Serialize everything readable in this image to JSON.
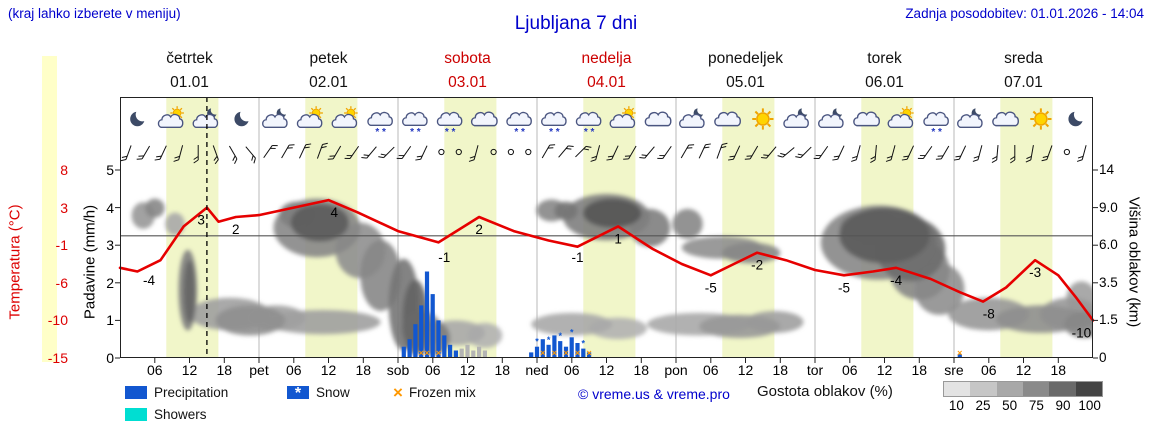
{
  "colors": {
    "blue_text": "#0000cc",
    "temperature": "#e60000",
    "temperature_axis": "#dd0000",
    "daylight": "#f1f6c9",
    "strip": "#ffffc8",
    "precipitation": "#1257d0",
    "showers": "#00ded2",
    "frozen": "#ff9800",
    "weekend_red": "#cc0000"
  },
  "header": {
    "hint": "(kraj lahko izberete v meniju)",
    "title": "Ljubljana 7 dni",
    "last_update": "Zadnja posodobitev: 01.01.2026 - 14:04"
  },
  "days": [
    {
      "name": "četrtek",
      "date": "01.01",
      "highlight": false
    },
    {
      "name": "petek",
      "date": "02.01",
      "highlight": false
    },
    {
      "name": "sobota",
      "date": "03.01",
      "highlight": true
    },
    {
      "name": "nedelja",
      "date": "04.01",
      "highlight": true
    },
    {
      "name": "ponedeljek",
      "date": "05.01",
      "highlight": false
    },
    {
      "name": "torek",
      "date": "06.01",
      "highlight": false
    },
    {
      "name": "sreda",
      "date": "07.01",
      "highlight": false
    }
  ],
  "left_axis": {
    "temp_label": "Temperatura (°C)",
    "temp_ticks": [
      "8",
      "3",
      "-1",
      "-6",
      "-10",
      "-15"
    ],
    "precip_label": "Padavine (mm/h)",
    "precip_ticks": [
      "5",
      "4",
      "3",
      "2",
      "1",
      "0"
    ]
  },
  "right_axis": {
    "label": "Višina oblakov (km)",
    "ticks": [
      "14",
      "9.0",
      "6.0",
      "3.5",
      "1.5",
      "0"
    ]
  },
  "x_axis": {
    "labels": [
      "06",
      "12",
      "18",
      "pet",
      "06",
      "12",
      "18",
      "sob",
      "06",
      "12",
      "18",
      "ned",
      "06",
      "12",
      "18",
      "pon",
      "06",
      "12",
      "18",
      "tor",
      "06",
      "12",
      "18",
      "sre",
      "06",
      "12",
      "18"
    ]
  },
  "legend": {
    "precipitation": "Precipitation",
    "showers": "Showers",
    "snow": "Snow",
    "frozen_mix": "Frozen mix",
    "copyright": "© vreme.us & vreme.pro",
    "cloud_density_label": "Gostota oblakov (%)",
    "cloud_scale_labels": [
      "10",
      "25",
      "50",
      "75",
      "90",
      "100"
    ],
    "cloud_scale_colors": [
      "#e3e3e3",
      "#c6c6c6",
      "#a8a8a8",
      "#8a8a8a",
      "#6a6a6a",
      "#444444"
    ]
  },
  "chart_data": {
    "type": "meteogram",
    "hours_total": 168,
    "now_hour": 15,
    "daylight_hours": [
      8,
      17
    ],
    "temp_axis_anchors": [
      8,
      3,
      -1,
      -6,
      -10,
      -15
    ],
    "km_axis_anchors": [
      14,
      9.0,
      6.0,
      3.5,
      1.5,
      0
    ],
    "temperature_curve": [
      [
        0,
        -4
      ],
      [
        3,
        -4.5
      ],
      [
        7,
        -3
      ],
      [
        11,
        1
      ],
      [
        15,
        3
      ],
      [
        17,
        1.5
      ],
      [
        20,
        2
      ],
      [
        24,
        2.2
      ],
      [
        30,
        3
      ],
      [
        36,
        4
      ],
      [
        41,
        2.5
      ],
      [
        48,
        0.5
      ],
      [
        55,
        -0.7
      ],
      [
        62,
        2
      ],
      [
        68,
        0.5
      ],
      [
        74,
        -0.5
      ],
      [
        79,
        -1.2
      ],
      [
        86,
        1
      ],
      [
        92,
        -1.5
      ],
      [
        97,
        -3.5
      ],
      [
        102,
        -5
      ],
      [
        106,
        -3.5
      ],
      [
        110,
        -2
      ],
      [
        115,
        -3
      ],
      [
        120,
        -4.3
      ],
      [
        125,
        -5
      ],
      [
        130,
        -4.5
      ],
      [
        134,
        -4
      ],
      [
        140,
        -5.5
      ],
      [
        145,
        -7
      ],
      [
        149,
        -8
      ],
      [
        153,
        -6.5
      ],
      [
        158,
        -3
      ],
      [
        162,
        -5
      ],
      [
        165,
        -7.5
      ],
      [
        168,
        -10
      ]
    ],
    "temperature_labels": [
      {
        "h": 5,
        "v": "-4"
      },
      {
        "h": 14,
        "v": "3"
      },
      {
        "h": 20,
        "v": "2"
      },
      {
        "h": 37,
        "v": "4"
      },
      {
        "h": 56,
        "v": "-1"
      },
      {
        "h": 62,
        "v": "2"
      },
      {
        "h": 79,
        "v": "-1"
      },
      {
        "h": 86,
        "v": "1"
      },
      {
        "h": 102,
        "v": "-5"
      },
      {
        "h": 110,
        "v": "-2"
      },
      {
        "h": 125,
        "v": "-5"
      },
      {
        "h": 134,
        "v": "-4"
      },
      {
        "h": 150,
        "v": "-8"
      },
      {
        "h": 158,
        "v": "-3"
      },
      {
        "h": 166,
        "v": "-10"
      }
    ],
    "precipitation_bars": [
      {
        "h": 49,
        "mm": 0.3
      },
      {
        "h": 50,
        "mm": 0.5
      },
      {
        "h": 51,
        "mm": 0.9
      },
      {
        "h": 52,
        "mm": 1.4
      },
      {
        "h": 53,
        "mm": 2.3
      },
      {
        "h": 54,
        "mm": 1.7
      },
      {
        "h": 55,
        "mm": 1.0
      },
      {
        "h": 56,
        "mm": 0.6
      },
      {
        "h": 57,
        "mm": 0.35
      },
      {
        "h": 58,
        "mm": 0.2
      },
      {
        "h": 71,
        "mm": 0.15
      },
      {
        "h": 72,
        "mm": 0.3
      },
      {
        "h": 73,
        "mm": 0.5
      },
      {
        "h": 74,
        "mm": 0.35
      },
      {
        "h": 75,
        "mm": 0.6
      },
      {
        "h": 76,
        "mm": 0.45
      },
      {
        "h": 77,
        "mm": 0.3
      },
      {
        "h": 78,
        "mm": 0.55
      },
      {
        "h": 79,
        "mm": 0.4
      },
      {
        "h": 80,
        "mm": 0.25
      },
      {
        "h": 81,
        "mm": 0.15
      },
      {
        "h": 145,
        "mm": 0.1
      }
    ],
    "gray_bars": [
      {
        "h": 59,
        "mm": 0.25
      },
      {
        "h": 60,
        "mm": 0.35
      },
      {
        "h": 61,
        "mm": 0.2
      },
      {
        "h": 62,
        "mm": 0.3
      },
      {
        "h": 63,
        "mm": 0.2
      }
    ],
    "frozen_mix_hours": [
      52,
      53,
      55,
      73,
      75,
      77,
      79,
      81,
      145
    ],
    "snow_mark_hours": [
      72,
      74,
      76,
      78,
      80
    ],
    "clouds": [
      {
        "h": 4,
        "km": 8.5,
        "rh": 2,
        "rkm": 1.2,
        "d": 0.45
      },
      {
        "h": 6,
        "km": 9.2,
        "rh": 1.7,
        "rkm": 1.0,
        "d": 0.55
      },
      {
        "h": 9.5,
        "km": 7.7,
        "rh": 1.7,
        "rkm": 0.9,
        "d": 0.35
      },
      {
        "h": 11.7,
        "km": 3.4,
        "rh": 1.6,
        "rkm": 2.3,
        "d": 0.6
      },
      {
        "h": 12,
        "km": 3.2,
        "rh": 1.0,
        "rkm": 1.8,
        "d": 0.75
      },
      {
        "h": 19,
        "km": 1.9,
        "rh": 7,
        "rkm": 0.8,
        "d": 0.4
      },
      {
        "h": 22.5,
        "km": 1.6,
        "rh": 6,
        "rkm": 0.7,
        "d": 0.5
      },
      {
        "h": 27,
        "km": 1.7,
        "rh": 5,
        "rkm": 0.6,
        "d": 0.4
      },
      {
        "h": 34,
        "km": 7.7,
        "rh": 7.5,
        "rkm": 2.5,
        "d": 0.55
      },
      {
        "h": 34.5,
        "km": 7.9,
        "rh": 5,
        "rkm": 1.6,
        "d": 0.8
      },
      {
        "h": 30.5,
        "km": 8.6,
        "rh": 3,
        "rkm": 1.2,
        "d": 0.6
      },
      {
        "h": 41.5,
        "km": 5.8,
        "rh": 4.3,
        "rkm": 2.0,
        "d": 0.5
      },
      {
        "h": 45,
        "km": 4.2,
        "rh": 3.5,
        "rkm": 2.2,
        "d": 0.55
      },
      {
        "h": 49,
        "km": 2.7,
        "rh": 2.6,
        "rkm": 2.4,
        "d": 0.65
      },
      {
        "h": 51,
        "km": 1.9,
        "rh": 2.2,
        "rkm": 1.8,
        "d": 0.75
      },
      {
        "h": 35,
        "km": 1.5,
        "rh": 10,
        "rkm": 0.55,
        "d": 0.4
      },
      {
        "h": 52,
        "km": 1.2,
        "rh": 3.5,
        "rkm": 0.8,
        "d": 0.5
      },
      {
        "h": 54,
        "km": 0.8,
        "rh": 3,
        "rkm": 0.7,
        "d": 0.6
      },
      {
        "h": 58,
        "km": 1.0,
        "rh": 5,
        "rkm": 0.5,
        "d": 0.35
      },
      {
        "h": 63,
        "km": 0.9,
        "rh": 3,
        "rkm": 0.5,
        "d": 0.3
      },
      {
        "h": 74.5,
        "km": 9.0,
        "rh": 2.6,
        "rkm": 1.1,
        "d": 0.55
      },
      {
        "h": 77,
        "km": 8.9,
        "rh": 2,
        "rkm": 0.9,
        "d": 0.65
      },
      {
        "h": 84,
        "km": 8.6,
        "rh": 7.5,
        "rkm": 2.2,
        "d": 0.6
      },
      {
        "h": 85,
        "km": 8.8,
        "rh": 5,
        "rkm": 1.4,
        "d": 0.85
      },
      {
        "h": 91.5,
        "km": 7.4,
        "rh": 3.5,
        "rkm": 1.5,
        "d": 0.6
      },
      {
        "h": 98,
        "km": 7.7,
        "rh": 2.6,
        "rkm": 1.2,
        "d": 0.55
      },
      {
        "h": 78,
        "km": 1.4,
        "rh": 7,
        "rkm": 0.5,
        "d": 0.35
      },
      {
        "h": 86,
        "km": 1.2,
        "rh": 5,
        "rkm": 0.45,
        "d": 0.3
      },
      {
        "h": 104,
        "km": 5.9,
        "rh": 7,
        "rkm": 0.8,
        "d": 0.5
      },
      {
        "h": 109,
        "km": 5.5,
        "rh": 5,
        "rkm": 0.7,
        "d": 0.55
      },
      {
        "h": 100,
        "km": 1.4,
        "rh": 9,
        "rkm": 0.5,
        "d": 0.35
      },
      {
        "h": 107,
        "km": 1.3,
        "rh": 7,
        "rkm": 0.5,
        "d": 0.45
      },
      {
        "h": 113,
        "km": 1.5,
        "rh": 5,
        "rkm": 0.5,
        "d": 0.4
      },
      {
        "h": 131,
        "km": 6.5,
        "rh": 10,
        "rkm": 2.8,
        "d": 0.55
      },
      {
        "h": 132,
        "km": 6.9,
        "rh": 7.8,
        "rkm": 2.1,
        "d": 0.8
      },
      {
        "h": 129.5,
        "km": 7.4,
        "rh": 5.2,
        "rkm": 1.3,
        "d": 0.65
      },
      {
        "h": 136.5,
        "km": 5.9,
        "rh": 6,
        "rkm": 2.3,
        "d": 0.7
      },
      {
        "h": 138,
        "km": 4.5,
        "rh": 5.2,
        "rkm": 1.9,
        "d": 0.55
      },
      {
        "h": 141.5,
        "km": 3.3,
        "rh": 4.3,
        "rkm": 1.5,
        "d": 0.5
      },
      {
        "h": 150,
        "km": 1.9,
        "rh": 7,
        "rkm": 0.8,
        "d": 0.45
      },
      {
        "h": 159,
        "km": 1.65,
        "rh": 7.8,
        "rkm": 0.65,
        "d": 0.5
      },
      {
        "h": 164,
        "km": 1.9,
        "rh": 5.2,
        "rkm": 0.8,
        "d": 0.45
      },
      {
        "h": 166.5,
        "km": 1.4,
        "rh": 3.5,
        "rkm": 0.6,
        "d": 0.55
      },
      {
        "h": 166,
        "km": 2.7,
        "rh": 2.6,
        "rkm": 0.9,
        "d": 0.4
      }
    ],
    "icons": [
      "moon",
      "cloud-sun",
      "cloud-moon",
      "moon",
      "cloud-moon",
      "cloud-sun",
      "cloud-sun",
      "cloud-snow",
      "cloud-snow",
      "cloud-snow",
      "cloud",
      "cloud-snow",
      "cloud-snow",
      "cloud-snow",
      "cloud-sun",
      "cloud",
      "cloud-moon",
      "cloud",
      "sun",
      "cloud-moon",
      "cloud-moon",
      "cloud",
      "cloud-sun",
      "cloud-snow",
      "cloud-moon",
      "cloud",
      "sun",
      "moon"
    ],
    "wind": [
      200,
      210,
      205,
      195,
      180,
      160,
      150,
      140,
      35,
      30,
      25,
      20,
      210,
      215,
      220,
      225,
      215,
      205,
      "c",
      "c",
      195,
      "c",
      "c",
      "c",
      30,
      40,
      45,
      195,
      205,
      210,
      220,
      215,
      30,
      25,
      20,
      205,
      210,
      220,
      230,
      225,
      215,
      205,
      195,
      185,
      195,
      205,
      215,
      210,
      205,
      195,
      185,
      180,
      190,
      200,
      "c",
      195
    ]
  }
}
